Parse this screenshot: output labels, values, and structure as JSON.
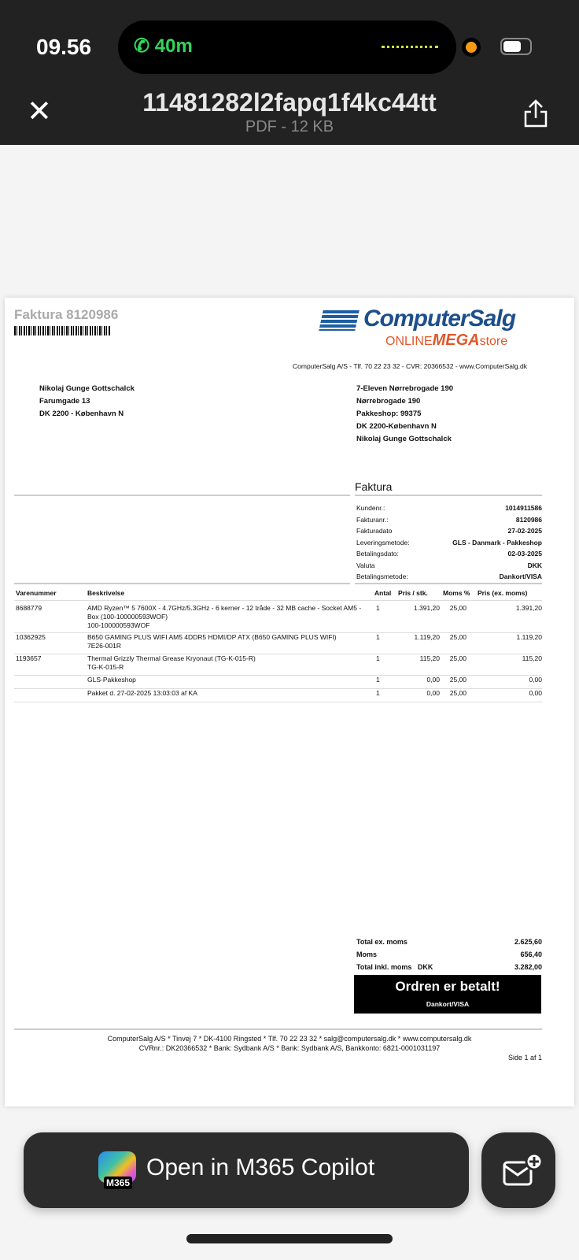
{
  "status": {
    "time": "09.56",
    "call_duration": "40m"
  },
  "header": {
    "title": "11481282l2fapq1f4kc44tt",
    "subtitle": "PDF - 12 KB"
  },
  "invoice": {
    "heading": "Faktura 8120986",
    "logo": {
      "brand": "ComputerSalg",
      "tagline_prefix": "ONLINE",
      "tagline_mid": "MEGA",
      "tagline_suffix": "store"
    },
    "company_line": "ComputerSalg A/S - Tlf. 70 22 23 32 - CVR: 20366532 - www.ComputerSalg.dk",
    "billing": [
      "Nikolaj Gunge Gottschalck",
      "Farumgade 13",
      "DK 2200 - København N"
    ],
    "shipping": [
      "7-Eleven Nørrebrogade 190",
      "Nørrebrogade 190",
      "Pakkeshop: 99375",
      "DK 2200-København N",
      "Nikolaj Gunge Gottschalck"
    ],
    "info_title": "Faktura",
    "info": [
      {
        "label": "Kundenr.:",
        "value": "1014911586"
      },
      {
        "label": "Fakturanr.:",
        "value": "8120986"
      },
      {
        "label": "Fakturadato",
        "value": "27-02-2025"
      },
      {
        "label": "Leveringsmetode:",
        "value": "GLS - Danmark - Pakkeshop"
      },
      {
        "label": "Betalingsdato:",
        "value": "02-03-2025"
      },
      {
        "label": "Valuta",
        "value": "DKK"
      },
      {
        "label": "Betalingsmetode:",
        "value": "Dankort/VISA"
      }
    ],
    "columns": [
      "Varenummer",
      "Beskrivelse",
      "Antal",
      "Pris / stk.",
      "Moms %",
      "Pris (ex. moms)"
    ],
    "items": [
      {
        "sku": "8688779",
        "desc": "AMD Ryzen™ 5 7600X - 4.7GHz/5.3GHz - 6 kerner - 12 tråde - 32 MB cache - Socket AM5 - Box (100-100000593WOF)",
        "desc2": "100-100000593WOF",
        "qty": "1",
        "price": "1.391,20",
        "vat": "25,00",
        "total": "1.391,20"
      },
      {
        "sku": "10362925",
        "desc": "B650 GAMING PLUS WIFI  AM5 4DDR5 HDMI/DP ATX (B650 GAMING PLUS WIFI)",
        "desc2": "7E26-001R",
        "qty": "1",
        "price": "1.119,20",
        "vat": "25,00",
        "total": "1.119,20"
      },
      {
        "sku": "1193657",
        "desc": "Thermal Grizzly Thermal Grease Kryonaut (TG-K-015-R)",
        "desc2": "TG-K-015-R",
        "qty": "1",
        "price": "115,20",
        "vat": "25,00",
        "total": "115,20"
      },
      {
        "sku": "",
        "desc": "GLS-Pakkeshop",
        "desc2": "",
        "qty": "1",
        "price": "0,00",
        "vat": "25,00",
        "total": "0,00"
      },
      {
        "sku": "",
        "desc": "Pakket d. 27-02-2025 13:03:03 af KA",
        "desc2": "",
        "qty": "1",
        "price": "0,00",
        "vat": "25,00",
        "total": "0,00"
      }
    ],
    "totals": [
      {
        "label": "Total ex. moms",
        "currency": "",
        "value": "2.625,60"
      },
      {
        "label": "Moms",
        "currency": "",
        "value": "656,40"
      },
      {
        "label": "Total inkl. moms",
        "currency": "DKK",
        "value": "3.282,00"
      }
    ],
    "paid_title": "Ordren er betalt!",
    "paid_method": "Dankort/VISA",
    "footer1": "ComputerSalg A/S * Tinvej 7 * DK-4100 Ringsted * Tlf. 70 22 23 32 * salg@computersalg.dk * www.computersalg.dk",
    "footer2": "CVRnr.: DK20366532 * Bank: Sydbank A/S * Bank: Sydbank A/S, Bankkonto: 6821-0001031197",
    "page": "Side 1 af 1"
  },
  "actions": {
    "copilot_label": "Open in M365 Copilot",
    "copilot_badge": "M365"
  }
}
